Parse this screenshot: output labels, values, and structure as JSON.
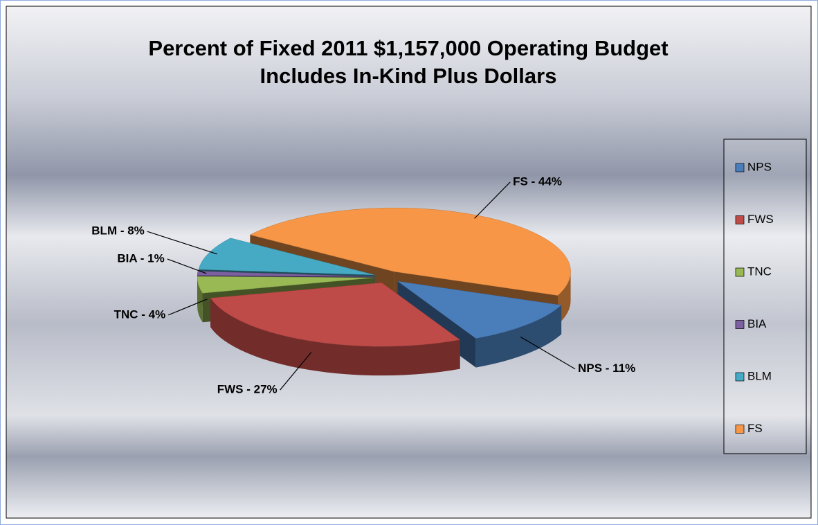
{
  "chart_data": {
    "type": "pie3d",
    "title": "Percent of Fixed 2011 $1,157,000 Operating Budget",
    "subtitle": "Includes In-Kind Plus Dollars",
    "categories": [
      "NPS",
      "FWS",
      "TNC",
      "BIA",
      "BLM",
      "FS"
    ],
    "values": [
      11,
      27,
      4,
      1,
      8,
      44
    ],
    "value_labels": [
      "NPS - 11%",
      "FWS - 27%",
      "TNC - 4%",
      "BIA - 1%",
      "BLM - 8%",
      "FS - 44%"
    ],
    "colors": [
      "#4a7ebb",
      "#be4b48",
      "#98b954",
      "#7d60a0",
      "#46aac5",
      "#f79646"
    ],
    "legend": "right"
  }
}
